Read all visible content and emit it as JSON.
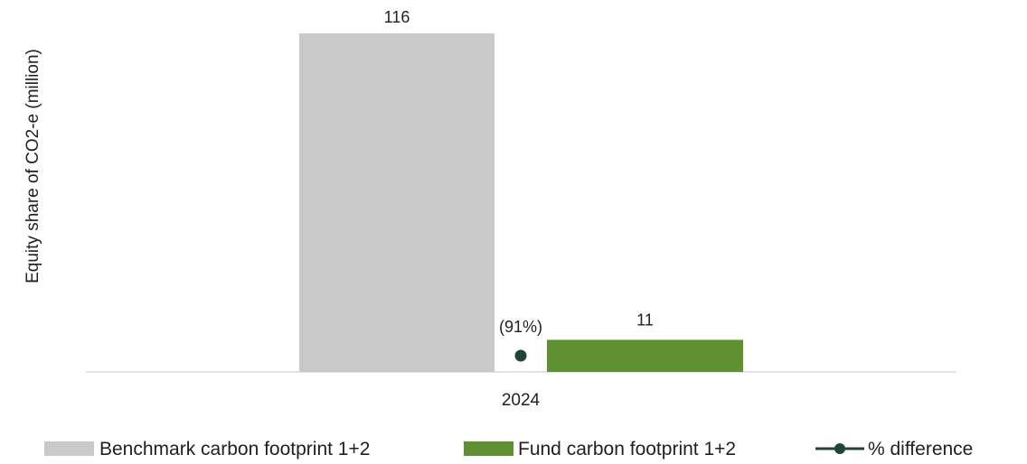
{
  "chart_data": {
    "type": "bar",
    "categories": [
      "2024"
    ],
    "ylabel": "Equity share of CO2-e (million)",
    "xlabel": "",
    "ylim": [
      0,
      120
    ],
    "grid": false,
    "legend_position": "bottom",
    "series": [
      {
        "name": "Benchmark carbon footprint 1+2",
        "values": [
          116
        ],
        "value_labels": [
          "116"
        ],
        "color": "#c9c9c9",
        "kind": "bar"
      },
      {
        "name": "% difference",
        "values": [
          -91
        ],
        "value_labels": [
          "(91%)"
        ],
        "color": "#1e4535",
        "kind": "line-marker"
      },
      {
        "name": "Fund carbon footprint 1+2",
        "values": [
          11
        ],
        "value_labels": [
          "11"
        ],
        "color": "#5f9133",
        "kind": "bar"
      }
    ],
    "legend": [
      {
        "label": "Benchmark carbon footprint 1+2",
        "swatch": "bar",
        "color": "#c9c9c9"
      },
      {
        "label": "Fund carbon footprint 1+2",
        "swatch": "bar",
        "color": "#5f9133"
      },
      {
        "label": "% difference",
        "swatch": "line-marker",
        "color": "#1e4535"
      }
    ]
  }
}
